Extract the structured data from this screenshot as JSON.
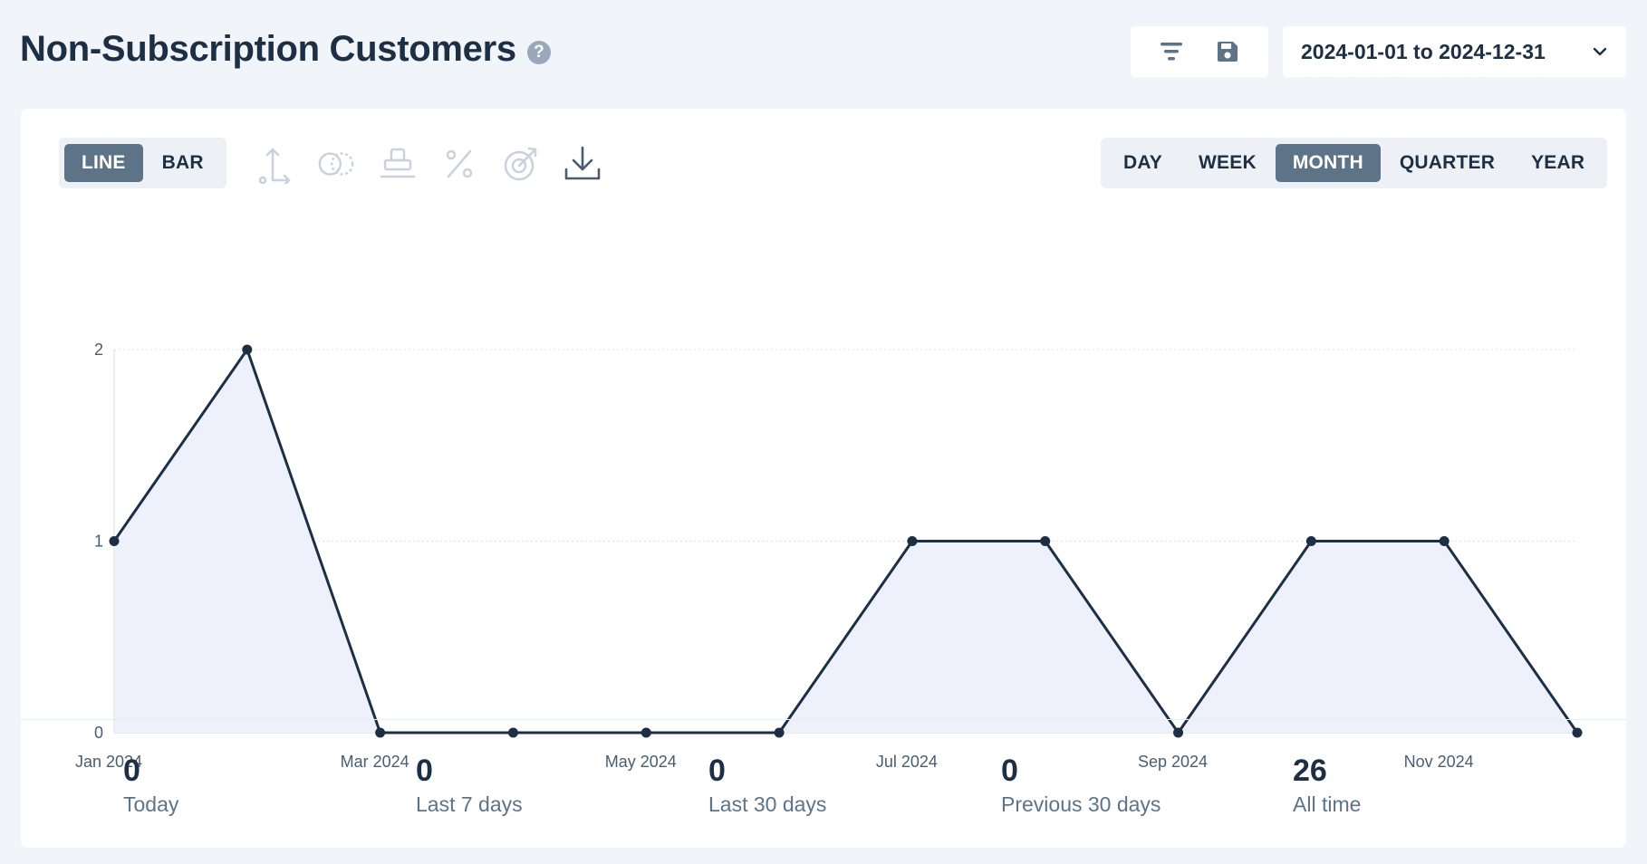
{
  "header": {
    "title": "Non-Subscription Customers",
    "help_glyph": "?",
    "filter_icon": "filter-icon",
    "save_icon": "save-icon",
    "date_range": "2024-01-01 to 2024-12-31"
  },
  "chart_types": [
    {
      "label": "LINE",
      "active": true
    },
    {
      "label": "BAR",
      "active": false
    }
  ],
  "chart_tools": [
    "axis-icon",
    "compare-icon",
    "stack-icon",
    "percent-icon",
    "target-icon",
    "download-icon"
  ],
  "periods": [
    {
      "label": "DAY",
      "active": false
    },
    {
      "label": "WEEK",
      "active": false
    },
    {
      "label": "MONTH",
      "active": true
    },
    {
      "label": "QUARTER",
      "active": false
    },
    {
      "label": "YEAR",
      "active": false
    }
  ],
  "colors": {
    "line": "#1c2f45",
    "area": "#eef1fb",
    "active_button": "#5d7488",
    "axis_text": "#4a5d70"
  },
  "chart_data": {
    "type": "area",
    "x": [
      "Jan 2024",
      "Feb 2024",
      "Mar 2024",
      "Apr 2024",
      "May 2024",
      "Jun 2024",
      "Jul 2024",
      "Aug 2024",
      "Sep 2024",
      "Oct 2024",
      "Nov 2024",
      "Dec 2024"
    ],
    "x_tick_labels": [
      "Jan 2024",
      "Mar 2024",
      "May 2024",
      "Jul 2024",
      "Sep 2024",
      "Nov 2024"
    ],
    "values": [
      1,
      2,
      0,
      0,
      0,
      0,
      1,
      1,
      0,
      1,
      1,
      0
    ],
    "y_ticks": [
      "0",
      "1",
      "2"
    ],
    "ylim": [
      0,
      2
    ],
    "grid": true,
    "xlabel": "",
    "ylabel": ""
  },
  "stats": [
    {
      "value": "0",
      "label": "Today"
    },
    {
      "value": "0",
      "label": "Last 7 days"
    },
    {
      "value": "0",
      "label": "Last 30 days"
    },
    {
      "value": "0",
      "label": "Previous 30 days"
    },
    {
      "value": "26",
      "label": "All time"
    }
  ]
}
